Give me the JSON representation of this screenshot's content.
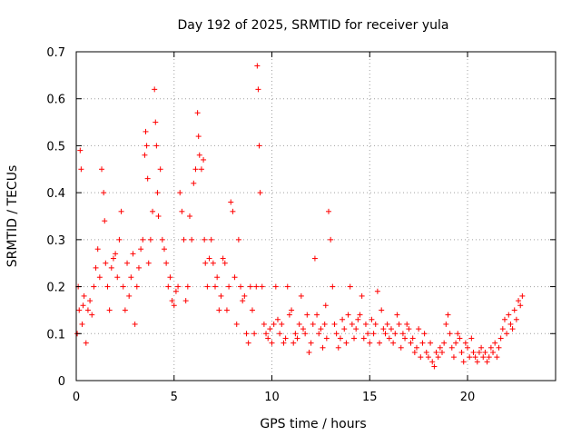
{
  "chart_data": {
    "type": "scatter",
    "title": "Day 192 of 2025, SRMTID for receiver yula",
    "xlabel": "GPS time / hours",
    "ylabel": "SRMTID / TECUs",
    "xlim": [
      0,
      24.5
    ],
    "ylim": [
      0,
      0.7
    ],
    "xticks": [
      0,
      5,
      10,
      15,
      20
    ],
    "xtick_labels": [
      "0",
      "5",
      "10",
      "15",
      "20"
    ],
    "yticks": [
      0,
      0.1,
      0.2,
      0.3,
      0.4,
      0.5,
      0.6,
      0.7
    ],
    "ytick_labels": [
      "0",
      "0.1",
      "0.2",
      "0.3",
      "0.4",
      "0.5",
      "0.6",
      "0.7"
    ],
    "grid": true,
    "marker": "+",
    "series": [
      {
        "name": "SRMTID",
        "color": "#ff0000",
        "x": [
          0.05,
          0.1,
          0.15,
          0.2,
          0.25,
          0.3,
          0.35,
          0.4,
          0.5,
          0.6,
          0.7,
          0.8,
          0.9,
          1.0,
          1.1,
          1.2,
          1.3,
          1.4,
          1.45,
          1.5,
          1.6,
          1.7,
          1.8,
          1.9,
          2.0,
          2.1,
          2.2,
          2.3,
          2.4,
          2.5,
          2.6,
          2.7,
          2.8,
          2.9,
          3.0,
          3.1,
          3.2,
          3.3,
          3.4,
          3.5,
          3.55,
          3.6,
          3.65,
          3.7,
          3.8,
          3.9,
          4.0,
          4.05,
          4.1,
          4.15,
          4.2,
          4.3,
          4.4,
          4.5,
          4.6,
          4.7,
          4.8,
          4.9,
          5.0,
          5.1,
          5.2,
          5.3,
          5.4,
          5.5,
          5.6,
          5.7,
          5.8,
          5.9,
          6.0,
          6.1,
          6.2,
          6.25,
          6.3,
          6.4,
          6.5,
          6.55,
          6.6,
          6.7,
          6.8,
          6.9,
          7.0,
          7.1,
          7.2,
          7.3,
          7.4,
          7.5,
          7.6,
          7.7,
          7.8,
          7.9,
          8.0,
          8.1,
          8.2,
          8.3,
          8.4,
          8.5,
          8.6,
          8.7,
          8.8,
          8.9,
          9.0,
          9.1,
          9.2,
          9.25,
          9.3,
          9.35,
          9.4,
          9.5,
          9.6,
          9.7,
          9.8,
          9.9,
          10.0,
          10.1,
          10.2,
          10.3,
          10.4,
          10.5,
          10.6,
          10.7,
          10.8,
          10.9,
          11.0,
          11.1,
          11.2,
          11.3,
          11.4,
          11.5,
          11.6,
          11.7,
          11.8,
          11.9,
          12.0,
          12.1,
          12.2,
          12.3,
          12.4,
          12.5,
          12.6,
          12.7,
          12.75,
          12.8,
          12.9,
          13.0,
          13.1,
          13.2,
          13.3,
          13.4,
          13.5,
          13.6,
          13.7,
          13.8,
          13.9,
          14.0,
          14.1,
          14.2,
          14.3,
          14.4,
          14.5,
          14.6,
          14.7,
          14.8,
          14.9,
          15.0,
          15.1,
          15.2,
          15.3,
          15.4,
          15.5,
          15.6,
          15.7,
          15.8,
          15.9,
          16.0,
          16.1,
          16.2,
          16.3,
          16.4,
          16.5,
          16.6,
          16.7,
          16.8,
          16.9,
          17.0,
          17.1,
          17.2,
          17.3,
          17.4,
          17.5,
          17.6,
          17.7,
          17.8,
          17.9,
          18.0,
          18.1,
          18.2,
          18.3,
          18.4,
          18.5,
          18.6,
          18.7,
          18.8,
          18.9,
          19.0,
          19.1,
          19.2,
          19.3,
          19.4,
          19.5,
          19.6,
          19.7,
          19.8,
          19.9,
          20.0,
          20.1,
          20.2,
          20.3,
          20.4,
          20.5,
          20.6,
          20.7,
          20.8,
          20.9,
          21.0,
          21.1,
          21.2,
          21.3,
          21.4,
          21.5,
          21.6,
          21.7,
          21.8,
          21.9,
          22.0,
          22.1,
          22.2,
          22.3,
          22.4,
          22.5,
          22.6,
          22.7,
          22.8
        ],
        "y": [
          0.1,
          0.2,
          0.15,
          0.49,
          0.45,
          0.12,
          0.16,
          0.18,
          0.08,
          0.15,
          0.17,
          0.14,
          0.2,
          0.24,
          0.28,
          0.22,
          0.45,
          0.4,
          0.34,
          0.25,
          0.2,
          0.15,
          0.24,
          0.26,
          0.27,
          0.22,
          0.3,
          0.36,
          0.2,
          0.15,
          0.25,
          0.18,
          0.22,
          0.27,
          0.12,
          0.2,
          0.24,
          0.28,
          0.3,
          0.48,
          0.53,
          0.5,
          0.43,
          0.25,
          0.3,
          0.36,
          0.62,
          0.55,
          0.5,
          0.4,
          0.35,
          0.45,
          0.3,
          0.28,
          0.25,
          0.2,
          0.22,
          0.17,
          0.16,
          0.19,
          0.2,
          0.4,
          0.36,
          0.3,
          0.17,
          0.2,
          0.35,
          0.3,
          0.42,
          0.45,
          0.57,
          0.52,
          0.48,
          0.45,
          0.47,
          0.3,
          0.25,
          0.2,
          0.26,
          0.3,
          0.25,
          0.2,
          0.22,
          0.15,
          0.18,
          0.26,
          0.25,
          0.15,
          0.2,
          0.38,
          0.36,
          0.22,
          0.12,
          0.3,
          0.2,
          0.17,
          0.18,
          0.1,
          0.08,
          0.2,
          0.15,
          0.1,
          0.2,
          0.67,
          0.62,
          0.5,
          0.4,
          0.2,
          0.12,
          0.1,
          0.09,
          0.11,
          0.08,
          0.12,
          0.2,
          0.13,
          0.1,
          0.12,
          0.08,
          0.09,
          0.2,
          0.14,
          0.15,
          0.08,
          0.1,
          0.09,
          0.12,
          0.18,
          0.11,
          0.1,
          0.14,
          0.06,
          0.08,
          0.12,
          0.26,
          0.14,
          0.1,
          0.11,
          0.07,
          0.12,
          0.16,
          0.09,
          0.36,
          0.3,
          0.2,
          0.12,
          0.1,
          0.07,
          0.09,
          0.13,
          0.11,
          0.08,
          0.14,
          0.2,
          0.12,
          0.09,
          0.11,
          0.13,
          0.14,
          0.18,
          0.09,
          0.12,
          0.1,
          0.08,
          0.13,
          0.1,
          0.12,
          0.19,
          0.08,
          0.15,
          0.11,
          0.1,
          0.12,
          0.09,
          0.11,
          0.08,
          0.1,
          0.14,
          0.12,
          0.07,
          0.1,
          0.09,
          0.12,
          0.11,
          0.08,
          0.09,
          0.06,
          0.07,
          0.11,
          0.05,
          0.08,
          0.1,
          0.06,
          0.05,
          0.08,
          0.04,
          0.03,
          0.06,
          0.05,
          0.07,
          0.06,
          0.08,
          0.12,
          0.14,
          0.1,
          0.07,
          0.05,
          0.08,
          0.1,
          0.09,
          0.06,
          0.04,
          0.08,
          0.07,
          0.05,
          0.09,
          0.06,
          0.05,
          0.04,
          0.06,
          0.07,
          0.05,
          0.06,
          0.04,
          0.05,
          0.07,
          0.06,
          0.08,
          0.05,
          0.07,
          0.09,
          0.11,
          0.13,
          0.1,
          0.14,
          0.12,
          0.11,
          0.15,
          0.13,
          0.17,
          0.16,
          0.18
        ]
      }
    ]
  }
}
